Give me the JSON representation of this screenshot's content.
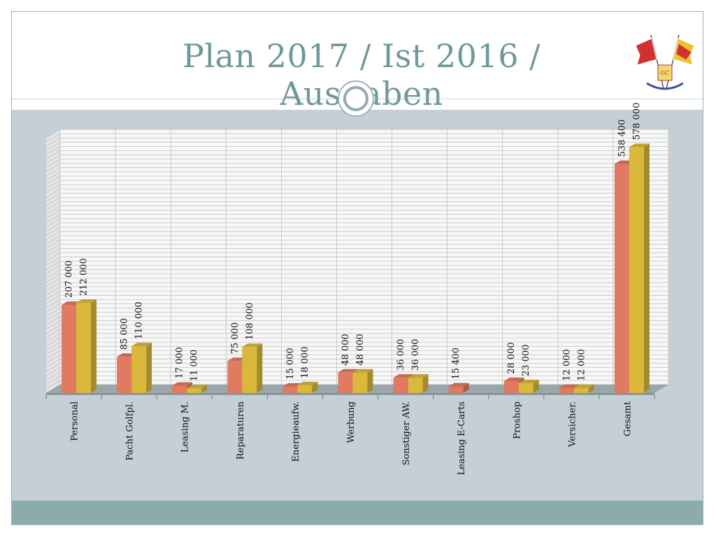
{
  "title": "Plan 2017 / Ist 2016 / Ausgaben",
  "colors": {
    "title": "#6f9999",
    "ist": "#e07a60",
    "plan": "#d9b83c",
    "background": "#c5d0d6",
    "footer": "#8aacac"
  },
  "chart_data": {
    "type": "bar",
    "style": "3d-clustered-column",
    "categories": [
      "Personal",
      "Pacht Golfpl.",
      "Leasing M.",
      "Reparaturen",
      "Energieaufw.",
      "Werbung",
      "Sonstiger AW.",
      "Leasing E-Carts",
      "Proshop",
      "Versicher.",
      "Gesamt"
    ],
    "series": [
      {
        "color": "#e07a60",
        "values": [
          207000,
          85000,
          17000,
          75000,
          15000,
          48000,
          36000,
          15400,
          28000,
          12000,
          538400
        ],
        "labels": [
          "207 000",
          "85 000",
          "17 000",
          "75 000",
          "15 000",
          "48 000",
          "36 000",
          "15 400",
          "28 000",
          "12 000",
          "538 400"
        ]
      },
      {
        "color": "#d9b83c",
        "values": [
          212000,
          110000,
          11000,
          108000,
          18000,
          48000,
          36000,
          null,
          23000,
          12000,
          578000
        ],
        "labels": [
          "212 000",
          "110 000",
          "11 000",
          "108 000",
          "18 000",
          "48 000",
          "36 000",
          "",
          "23 000",
          "12 000",
          "578 000"
        ]
      }
    ],
    "ylim": [
      0,
      600000
    ],
    "grid": true,
    "legend": "none",
    "xlabel": "",
    "ylabel": ""
  }
}
